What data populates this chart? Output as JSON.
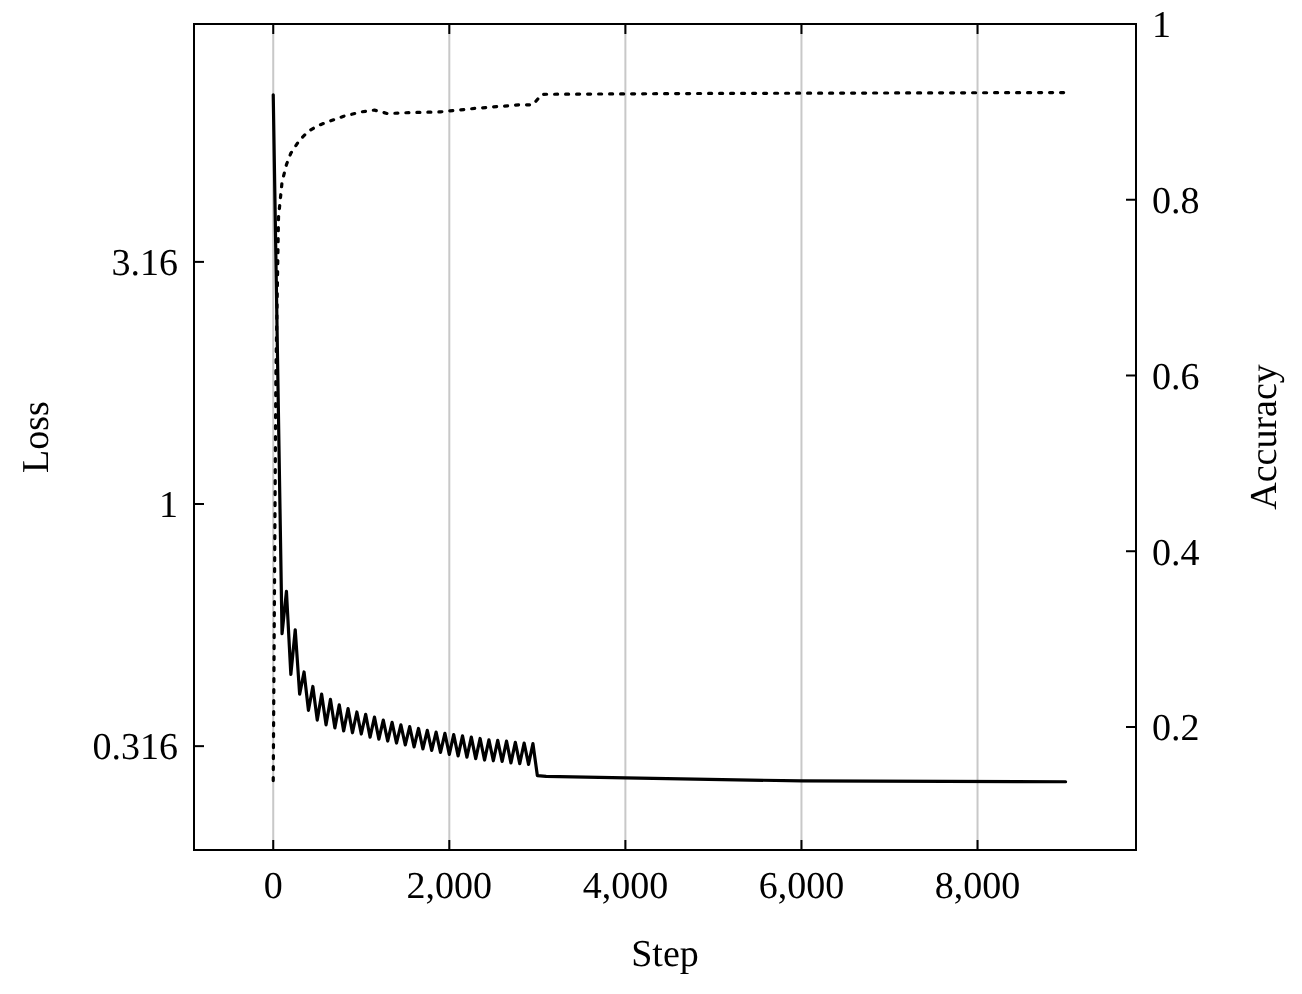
{
  "chart_data": {
    "type": "line",
    "xlabel": "Step",
    "ylabel": "Loss",
    "y2label": "Accuracy",
    "xlim": [
      -900,
      9800
    ],
    "xticks": [
      0,
      {
        "value": 2000,
        "label": "2,000"
      },
      {
        "value": 4000,
        "label": "4,000"
      },
      {
        "value": 6000,
        "label": "6,000"
      },
      {
        "value": 8000,
        "label": "8,000"
      }
    ],
    "ylim": [
      0.193,
      9.8
    ],
    "yticks": [
      {
        "value": 0.31623,
        "label": "0.316"
      },
      1,
      {
        "value": 3.1623,
        "label": "3.16"
      }
    ],
    "y2lim": [
      0.06,
      1
    ],
    "y2ticks": [
      0.2,
      0.4,
      0.6,
      0.8,
      1
    ],
    "log": "y",
    "grid": "x",
    "marker": "none",
    "series": [
      {
        "color": "#000000",
        "line_style": "solid",
        "x": [
          0,
          100,
          150,
          200,
          250,
          300,
          350,
          400,
          450,
          500,
          550,
          600,
          650,
          700,
          750,
          800,
          850,
          900,
          950,
          1000,
          1050,
          1100,
          1150,
          1200,
          1250,
          1300,
          1350,
          1400,
          1450,
          1500,
          1550,
          1600,
          1650,
          1700,
          1750,
          1800,
          1850,
          1900,
          1950,
          2000,
          2050,
          2100,
          2150,
          2200,
          2250,
          2300,
          2350,
          2400,
          2450,
          2500,
          2550,
          2600,
          2650,
          2700,
          2750,
          2800,
          2850,
          2900,
          2950,
          3000,
          3100,
          4000,
          6000,
          9000
        ],
        "values": [
          7.0,
          0.54,
          0.66,
          0.445,
          0.55,
          0.405,
          0.45,
          0.375,
          0.42,
          0.358,
          0.405,
          0.35,
          0.395,
          0.345,
          0.385,
          0.34,
          0.378,
          0.337,
          0.372,
          0.335,
          0.368,
          0.33,
          0.363,
          0.327,
          0.358,
          0.324,
          0.354,
          0.321,
          0.35,
          0.318,
          0.347,
          0.315,
          0.344,
          0.312,
          0.341,
          0.31,
          0.338,
          0.307,
          0.336,
          0.304,
          0.334,
          0.302,
          0.332,
          0.3,
          0.33,
          0.298,
          0.328,
          0.296,
          0.326,
          0.295,
          0.325,
          0.294,
          0.324,
          0.292,
          0.322,
          0.291,
          0.321,
          0.29,
          0.32,
          0.275,
          0.274,
          0.272,
          0.268,
          0.267
        ]
      },
      {
        "color": "#000000",
        "line_style": "dotted",
        "axis": "y2",
        "x": [
          0,
          30,
          60,
          100,
          150,
          200,
          300,
          400,
          500,
          600,
          800,
          1000,
          1150,
          1300,
          1500,
          1900,
          2300,
          2800,
          2950,
          3050,
          5000,
          9000
        ],
        "values": [
          0.139,
          0.6,
          0.78,
          0.82,
          0.84,
          0.853,
          0.868,
          0.878,
          0.884,
          0.888,
          0.895,
          0.9,
          0.902,
          0.898,
          0.899,
          0.9,
          0.904,
          0.908,
          0.908,
          0.92,
          0.921,
          0.922
        ]
      }
    ]
  }
}
